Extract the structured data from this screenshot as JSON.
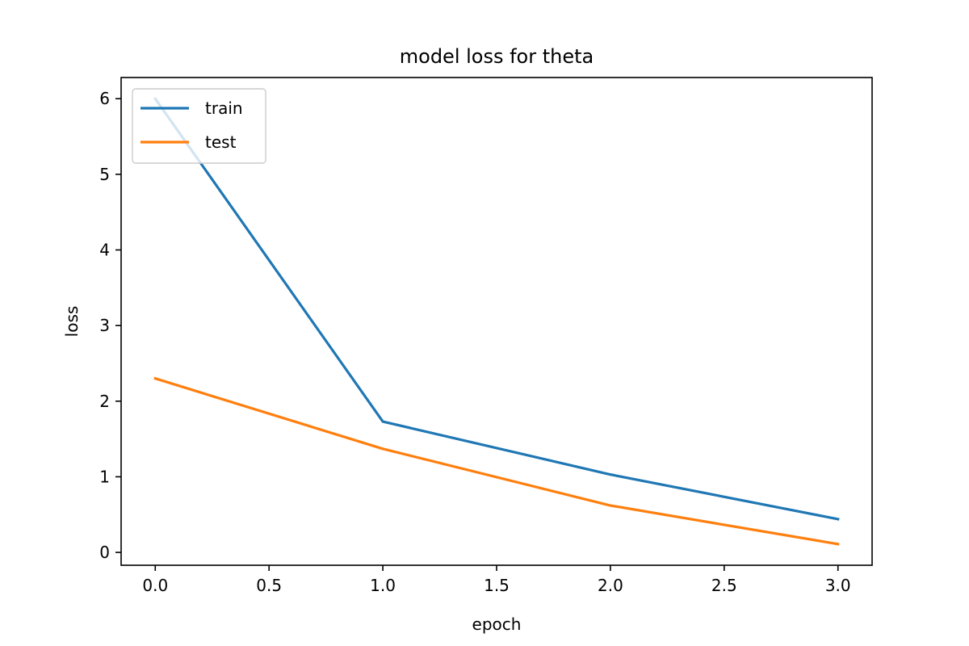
{
  "chart_data": {
    "type": "line",
    "title": "model loss for theta",
    "xlabel": "epoch",
    "ylabel": "loss",
    "x": [
      0,
      1,
      2,
      3
    ],
    "series": [
      {
        "name": "train",
        "color": "#1f77b4",
        "values": [
          6.0,
          1.73,
          1.03,
          0.44
        ]
      },
      {
        "name": "test",
        "color": "#ff7f0e",
        "values": [
          2.3,
          1.37,
          0.62,
          0.11
        ]
      }
    ],
    "xlim": [
      -0.15,
      3.15
    ],
    "ylim": [
      -0.17,
      6.28
    ],
    "xticks": [
      0.0,
      0.5,
      1.0,
      1.5,
      2.0,
      2.5,
      3.0
    ],
    "xtick_labels": [
      "0.0",
      "0.5",
      "1.0",
      "1.5",
      "2.0",
      "2.5",
      "3.0"
    ],
    "yticks": [
      0,
      1,
      2,
      3,
      4,
      5,
      6
    ],
    "ytick_labels": [
      "0",
      "1",
      "2",
      "3",
      "4",
      "5",
      "6"
    ],
    "grid": false,
    "legend_position": "upper left"
  }
}
